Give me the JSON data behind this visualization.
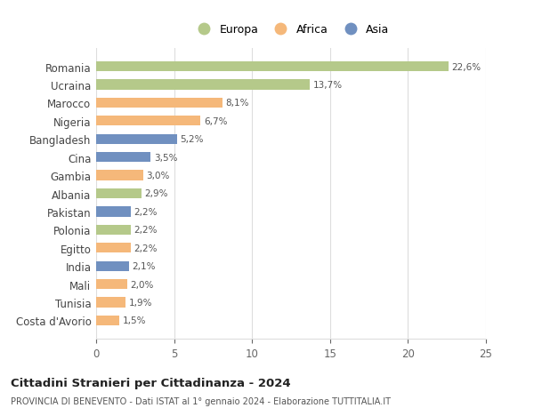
{
  "categories": [
    "Romania",
    "Ucraina",
    "Marocco",
    "Nigeria",
    "Bangladesh",
    "Cina",
    "Gambia",
    "Albania",
    "Pakistan",
    "Polonia",
    "Egitto",
    "India",
    "Mali",
    "Tunisia",
    "Costa d'Avorio"
  ],
  "values": [
    22.6,
    13.7,
    8.1,
    6.7,
    5.2,
    3.5,
    3.0,
    2.9,
    2.2,
    2.2,
    2.2,
    2.1,
    2.0,
    1.9,
    1.5
  ],
  "labels": [
    "22,6%",
    "13,7%",
    "8,1%",
    "6,7%",
    "5,2%",
    "3,5%",
    "3,0%",
    "2,9%",
    "2,2%",
    "2,2%",
    "2,2%",
    "2,1%",
    "2,0%",
    "1,9%",
    "1,5%"
  ],
  "continents": [
    "Europa",
    "Europa",
    "Africa",
    "Africa",
    "Asia",
    "Asia",
    "Africa",
    "Europa",
    "Asia",
    "Europa",
    "Africa",
    "Asia",
    "Africa",
    "Africa",
    "Africa"
  ],
  "colors": {
    "Europa": "#b5c98a",
    "Africa": "#f5b87a",
    "Asia": "#7090c0"
  },
  "legend_order": [
    "Europa",
    "Africa",
    "Asia"
  ],
  "xlim": [
    0,
    25
  ],
  "xticks": [
    0,
    5,
    10,
    15,
    20,
    25
  ],
  "title": "Cittadini Stranieri per Cittadinanza - 2024",
  "subtitle": "PROVINCIA DI BENEVENTO - Dati ISTAT al 1° gennaio 2024 - Elaborazione TUTTITALIA.IT",
  "background_color": "#ffffff",
  "grid_color": "#dddddd",
  "bar_height": 0.55
}
